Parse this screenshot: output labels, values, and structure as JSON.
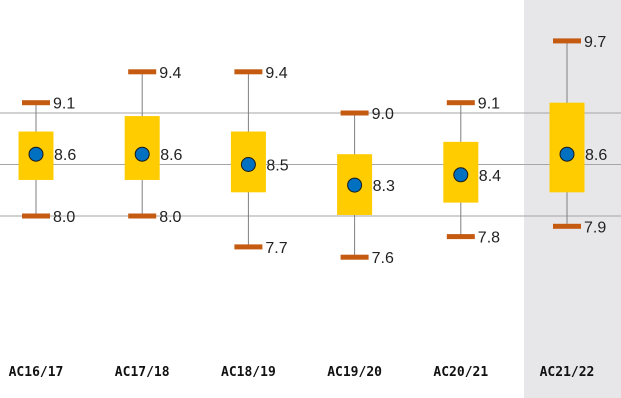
{
  "chart_data": {
    "type": "box",
    "title": "",
    "xlabel": "",
    "ylabel": "",
    "ylim": [
      6.65,
      10.0
    ],
    "gridlines": [
      8.0,
      8.5,
      9.0
    ],
    "highlight_category": "AC21/22",
    "colors": {
      "box": "#FFCC00",
      "mean_marker": "#0070C0",
      "whisker_cap": "#C55A11",
      "whisker_line": "#7F7F7F",
      "grid": "#A6A6A6",
      "highlight_band": "#E7E7E9"
    },
    "categories": [
      "AC16/17",
      "AC17/18",
      "AC18/19",
      "AC19/20",
      "AC20/21",
      "AC21/22"
    ],
    "series": [
      {
        "category": "AC16/17",
        "min": 8.0,
        "q1": 8.35,
        "mean": 8.6,
        "q3": 8.82,
        "max": 9.1,
        "min_label": "8.0",
        "mean_label": "8.6",
        "max_label": "9.1"
      },
      {
        "category": "AC17/18",
        "min": 8.0,
        "q1": 8.35,
        "mean": 8.6,
        "q3": 8.97,
        "max": 9.4,
        "min_label": "8.0",
        "mean_label": "8.6",
        "max_label": "9.4"
      },
      {
        "category": "AC18/19",
        "min": 7.7,
        "q1": 8.23,
        "mean": 8.5,
        "q3": 8.82,
        "max": 9.4,
        "min_label": "7.7",
        "mean_label": "8.5",
        "max_label": "9.4"
      },
      {
        "category": "AC19/20",
        "min": 7.6,
        "q1": 8.01,
        "mean": 8.3,
        "q3": 8.6,
        "max": 9.0,
        "min_label": "7.6",
        "mean_label": "8.3",
        "max_label": "9.0"
      },
      {
        "category": "AC20/21",
        "min": 7.8,
        "q1": 8.13,
        "mean": 8.4,
        "q3": 8.72,
        "max": 9.1,
        "min_label": "7.8",
        "mean_label": "8.4",
        "max_label": "9.1"
      },
      {
        "category": "AC21/22",
        "min": 7.9,
        "q1": 8.23,
        "mean": 8.6,
        "q3": 9.1,
        "max": 9.7,
        "min_label": "7.9",
        "mean_label": "8.6",
        "max_label": "9.7"
      }
    ]
  }
}
